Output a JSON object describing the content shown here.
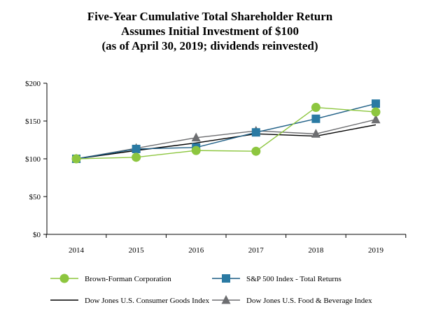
{
  "chart_data": {
    "type": "line",
    "title": [
      "Five-Year Cumulative Total Shareholder Return",
      "Assumes Initial Investment of $100",
      "(as of April 30, 2019; dividends reinvested)"
    ],
    "categories": [
      "2014",
      "2015",
      "2016",
      "2017",
      "2018",
      "2019"
    ],
    "ylim": [
      0,
      200
    ],
    "yticks": [
      0,
      50,
      100,
      150,
      200
    ],
    "ytick_labels": [
      "$0",
      "$50",
      "$100",
      "$150",
      "$200"
    ],
    "xlabel": "",
    "ylabel": "",
    "grid": false,
    "legend_position": "bottom",
    "series": [
      {
        "name": "Brown-Forman Corporation",
        "marker": "circle",
        "color": "#8dc63f",
        "line_color": "#8dc63f",
        "values": [
          100,
          102,
          111,
          110,
          168,
          162
        ]
      },
      {
        "name": "S&P 500 Index - Total Returns",
        "marker": "square",
        "color": "#2a7aa3",
        "line_color": "#1f5f86",
        "values": [
          100,
          113,
          115,
          135,
          153,
          173
        ]
      },
      {
        "name": "Dow Jones U.S. Consumer Goods Index",
        "marker": "none",
        "color": "#000000",
        "line_color": "#000000",
        "values": [
          100,
          111,
          121,
          133,
          130,
          145
        ]
      },
      {
        "name": "Dow Jones U.S. Food & Beverage Index",
        "marker": "triangle",
        "color": "#6d6e71",
        "line_color": "#6d6e71",
        "values": [
          100,
          114,
          128,
          137,
          133,
          152
        ]
      }
    ]
  }
}
